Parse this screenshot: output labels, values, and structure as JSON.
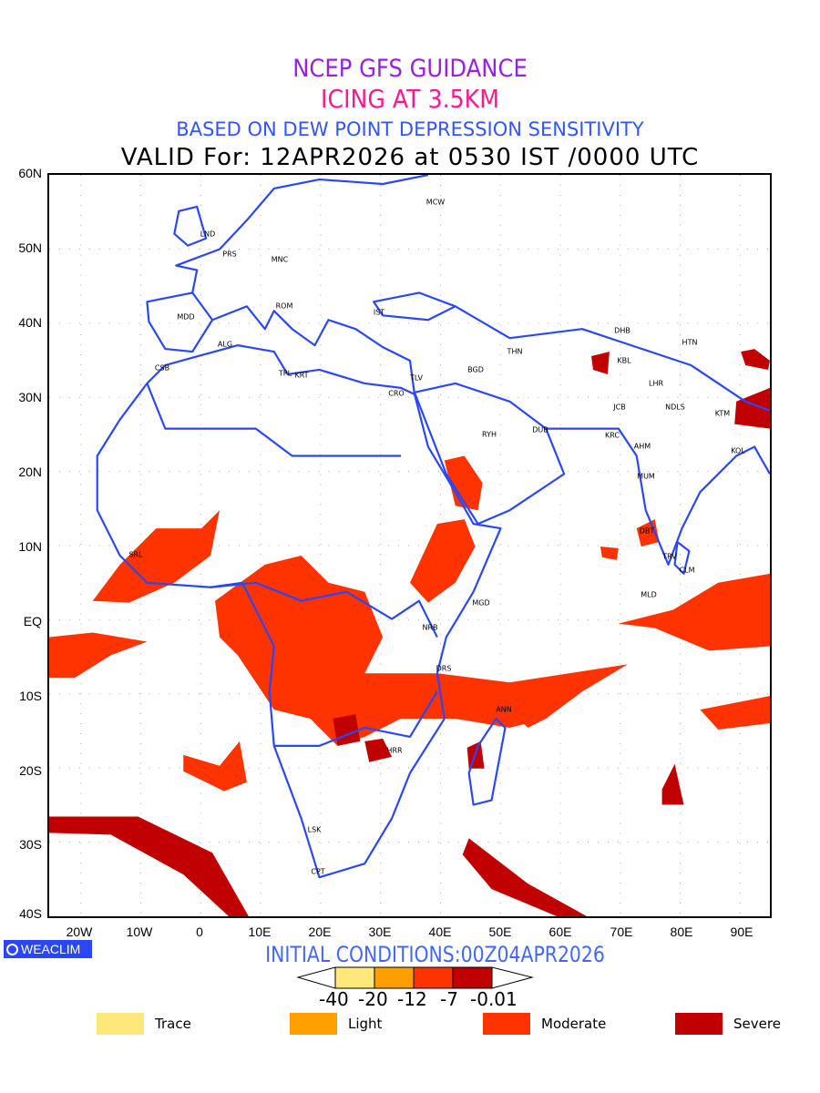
{
  "header": {
    "line1": "NCEP GFS GUIDANCE",
    "line2": "ICING AT 3.5KM",
    "line3": "BASED ON DEW POINT DEPRESSION SENSITIVITY",
    "valid": "VALID For: 12APR2026 at 0530 IST /0000 UTC"
  },
  "axes": {
    "lat_labels": [
      "60N",
      "50N",
      "40N",
      "30N",
      "20N",
      "10N",
      "EQ",
      "10S",
      "20S",
      "30S",
      "40S"
    ],
    "lon_labels": [
      "20W",
      "10W",
      "0",
      "10E",
      "20E",
      "30E",
      "40E",
      "50E",
      "60E",
      "70E",
      "80E",
      "90E"
    ]
  },
  "stations": [
    "MCW",
    "LND",
    "PRS",
    "MNC",
    "ROM",
    "MDD",
    "IST",
    "ALG",
    "CSB",
    "TPL",
    "KRT",
    "TLV",
    "CRO",
    "BGD",
    "THN",
    "RYH",
    "DUB",
    "DHB",
    "KBL",
    "HTN",
    "LHR",
    "NDLS",
    "JCB",
    "KRC",
    "AHM",
    "KTM",
    "KOL",
    "MUM",
    "DBT",
    "TRV",
    "CLM",
    "MLD",
    "SRL",
    "MGD",
    "NRB",
    "DRS",
    "ANN",
    "HRR",
    "LSK",
    "CPT"
  ],
  "logo": "WEACLIM",
  "initial_conditions": "INITIAL CONDITIONS:00Z04APR2026",
  "colorbar": {
    "ticks": [
      "-40",
      "-20",
      "-12",
      "-7",
      "-0.01"
    ],
    "colors": [
      "#ffe87a",
      "#ff9f00",
      "#ff3300",
      "#c00000"
    ]
  },
  "legend": [
    {
      "label": "Trace",
      "color": "#ffe87a"
    },
    {
      "label": "Light",
      "color": "#ff9f00"
    },
    {
      "label": "Moderate",
      "color": "#ff3300"
    },
    {
      "label": "Severe",
      "color": "#c00000"
    }
  ],
  "colors": {
    "coast": "#2b47f5",
    "grid": "#aaaaaa"
  }
}
